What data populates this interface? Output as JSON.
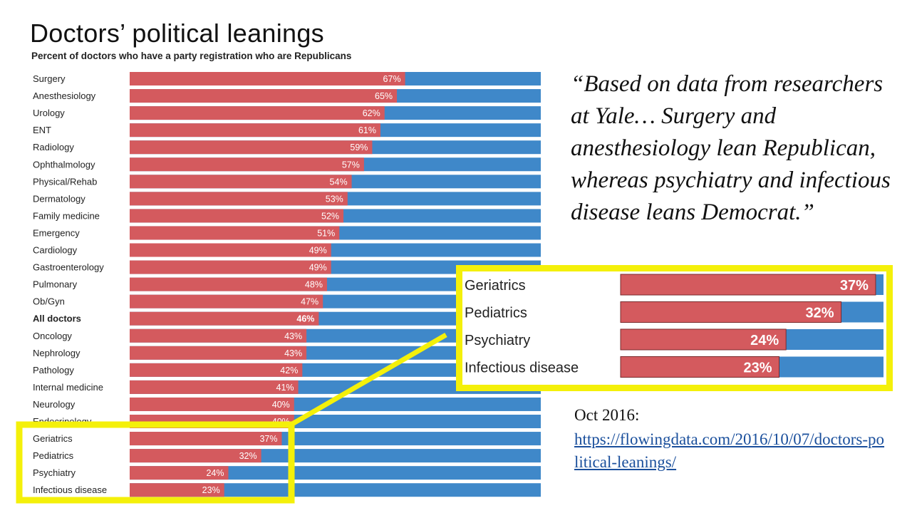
{
  "title": "Doctors’ political leanings",
  "subtitle": "Percent of doctors who have a party registration who are Republicans",
  "quote": "“Based on data from researchers at Yale… Surgery and anesthesiology lean Republican, whereas psychiatry and infectious disease leans Democrat.”",
  "source_date": "Oct 2016:",
  "source_url": "https://flowingdata.com/2016/10/07/doctors-political-leanings/",
  "colors": {
    "republican": "#d45a5e",
    "democrat": "#3f88c9",
    "highlight": "#f4f00a",
    "link": "#1a4f9c"
  },
  "chart_data": {
    "type": "bar",
    "orientation": "horizontal",
    "stacked": true,
    "title": "Doctors’ political leanings",
    "subtitle": "Percent of doctors who have a party registration who are Republicans",
    "xlim": [
      0,
      100
    ],
    "categories": [
      "Surgery",
      "Anesthesiology",
      "Urology",
      "ENT",
      "Radiology",
      "Ophthalmology",
      "Physical/Rehab",
      "Dermatology",
      "Family medicine",
      "Emergency",
      "Cardiology",
      "Gastroenterology",
      "Pulmonary",
      "Ob/Gyn",
      "All doctors",
      "Oncology",
      "Nephrology",
      "Pathology",
      "Internal medicine",
      "Neurology",
      "Endocrinology",
      "Geriatrics",
      "Pediatrics",
      "Psychiatry",
      "Infectious disease"
    ],
    "values": [
      67,
      65,
      62,
      61,
      59,
      57,
      54,
      53,
      52,
      51,
      49,
      49,
      48,
      47,
      46,
      43,
      43,
      42,
      41,
      40,
      40,
      37,
      32,
      24,
      23
    ],
    "value_labels": [
      "67%",
      "65%",
      "62%",
      "61%",
      "59%",
      "57%",
      "54%",
      "53%",
      "52%",
      "51%",
      "49%",
      "49%",
      "48%",
      "47%",
      "46%",
      "43%",
      "43%",
      "42%",
      "41%",
      "40%",
      "40%",
      "37%",
      "32%",
      "24%",
      "23%"
    ],
    "bold_category": "All doctors",
    "highlighted": [
      "Geriatrics",
      "Pediatrics",
      "Psychiatry",
      "Infectious disease"
    ],
    "grid": false,
    "legend": "none"
  }
}
